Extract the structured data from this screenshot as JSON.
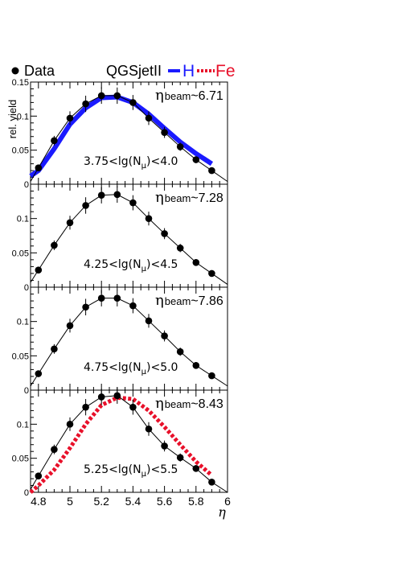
{
  "legend": {
    "data_label": "Data",
    "model_label": "QGSjetII",
    "h_label": "H",
    "fe_label": "Fe",
    "h_color": "#1a1aff",
    "fe_color": "#e8102a"
  },
  "y_axis_title": "rel. yield",
  "x_axis_title": "η",
  "x_tick_labels": [
    "4.8",
    "5",
    "5.2",
    "5.4",
    "5.6",
    "5.8",
    "6"
  ],
  "chart_data": {
    "type": "scatter",
    "xlim": [
      4.75,
      6.0
    ],
    "panels": [
      {
        "eta_prefix": "η",
        "eta_sub": "beam",
        "eta_value": "~6.71",
        "cut_label": "3.75<lg(N",
        "cut_sub": "μ",
        "cut_suffix": ")<4.0",
        "ylim": [
          0,
          0.15
        ],
        "yticks": [
          0,
          0.05,
          0.1,
          0.15
        ],
        "ytick_labels": [
          "0",
          "0.05",
          "0.1",
          "0.15"
        ],
        "data": {
          "x": [
            4.8,
            4.9,
            5.0,
            5.1,
            5.2,
            5.3,
            5.4,
            5.5,
            5.6,
            5.7,
            5.8,
            5.9
          ],
          "y": [
            0.024,
            0.064,
            0.097,
            0.118,
            0.13,
            0.13,
            0.12,
            0.097,
            0.076,
            0.055,
            0.036,
            0.02
          ],
          "err": [
            0.004,
            0.007,
            0.01,
            0.012,
            0.012,
            0.012,
            0.011,
            0.01,
            0.008,
            0.006,
            0.005,
            0.004
          ]
        },
        "model": {
          "name": "H",
          "x": [
            4.75,
            4.8,
            4.9,
            5.0,
            5.1,
            5.2,
            5.3,
            5.4,
            5.5,
            5.6,
            5.7,
            5.8,
            5.9
          ],
          "y": [
            0.012,
            0.02,
            0.052,
            0.088,
            0.112,
            0.127,
            0.128,
            0.12,
            0.103,
            0.082,
            0.062,
            0.045,
            0.03
          ]
        }
      },
      {
        "eta_prefix": "η",
        "eta_sub": "beam",
        "eta_value": "~7.28",
        "cut_label": "4.25<lg(N",
        "cut_sub": "μ",
        "cut_suffix": ")<4.5",
        "ylim": [
          0,
          0.15
        ],
        "yticks": [
          0,
          0.05,
          0.1
        ],
        "ytick_labels": [
          "0",
          "0.05",
          "0.1"
        ],
        "data": {
          "x": [
            4.8,
            4.9,
            5.0,
            5.1,
            5.2,
            5.3,
            5.4,
            5.5,
            5.6,
            5.7,
            5.8,
            5.9
          ],
          "y": [
            0.025,
            0.061,
            0.094,
            0.119,
            0.134,
            0.135,
            0.123,
            0.1,
            0.078,
            0.057,
            0.036,
            0.02
          ],
          "err": [
            0.004,
            0.007,
            0.01,
            0.012,
            0.012,
            0.012,
            0.011,
            0.01,
            0.008,
            0.006,
            0.005,
            0.004
          ]
        }
      },
      {
        "eta_prefix": "η",
        "eta_sub": "beam",
        "eta_value": "~7.86",
        "cut_label": "4.75<lg(N",
        "cut_sub": "μ",
        "cut_suffix": ")<5.0",
        "ylim": [
          0,
          0.15
        ],
        "yticks": [
          0,
          0.05,
          0.1
        ],
        "ytick_labels": [
          "0",
          "0.05",
          "0.1"
        ],
        "data": {
          "x": [
            4.8,
            4.9,
            5.0,
            5.1,
            5.2,
            5.3,
            5.4,
            5.5,
            5.6,
            5.7,
            5.8,
            5.9
          ],
          "y": [
            0.024,
            0.06,
            0.094,
            0.121,
            0.134,
            0.134,
            0.123,
            0.101,
            0.079,
            0.056,
            0.036,
            0.021
          ],
          "err": [
            0.004,
            0.007,
            0.01,
            0.012,
            0.012,
            0.012,
            0.011,
            0.01,
            0.008,
            0.006,
            0.005,
            0.004
          ]
        }
      },
      {
        "eta_prefix": "η",
        "eta_sub": "beam",
        "eta_value": "~8.43",
        "cut_label": "5.25<lg(N",
        "cut_sub": "μ",
        "cut_suffix": ")<5.5",
        "ylim": [
          0,
          0.15
        ],
        "yticks": [
          0,
          0.05,
          0.1
        ],
        "ytick_labels": [
          "0",
          "0.05",
          "0.1"
        ],
        "data": {
          "x": [
            4.8,
            4.9,
            5.0,
            5.1,
            5.2,
            5.3,
            5.4,
            5.5,
            5.6,
            5.7,
            5.8,
            5.9
          ],
          "y": [
            0.024,
            0.063,
            0.1,
            0.125,
            0.14,
            0.142,
            0.125,
            0.093,
            0.068,
            0.051,
            0.035,
            0.015
          ],
          "err": [
            0.004,
            0.007,
            0.01,
            0.012,
            0.012,
            0.012,
            0.011,
            0.01,
            0.008,
            0.006,
            0.005,
            0.004
          ]
        },
        "model": {
          "name": "Fe",
          "x": [
            4.75,
            4.8,
            4.9,
            5.0,
            5.1,
            5.2,
            5.3,
            5.4,
            5.5,
            5.6,
            5.7,
            5.8,
            5.9
          ],
          "y": [
            0.0,
            0.01,
            0.033,
            0.065,
            0.1,
            0.128,
            0.139,
            0.137,
            0.12,
            0.096,
            0.07,
            0.045,
            0.025
          ]
        }
      }
    ]
  }
}
